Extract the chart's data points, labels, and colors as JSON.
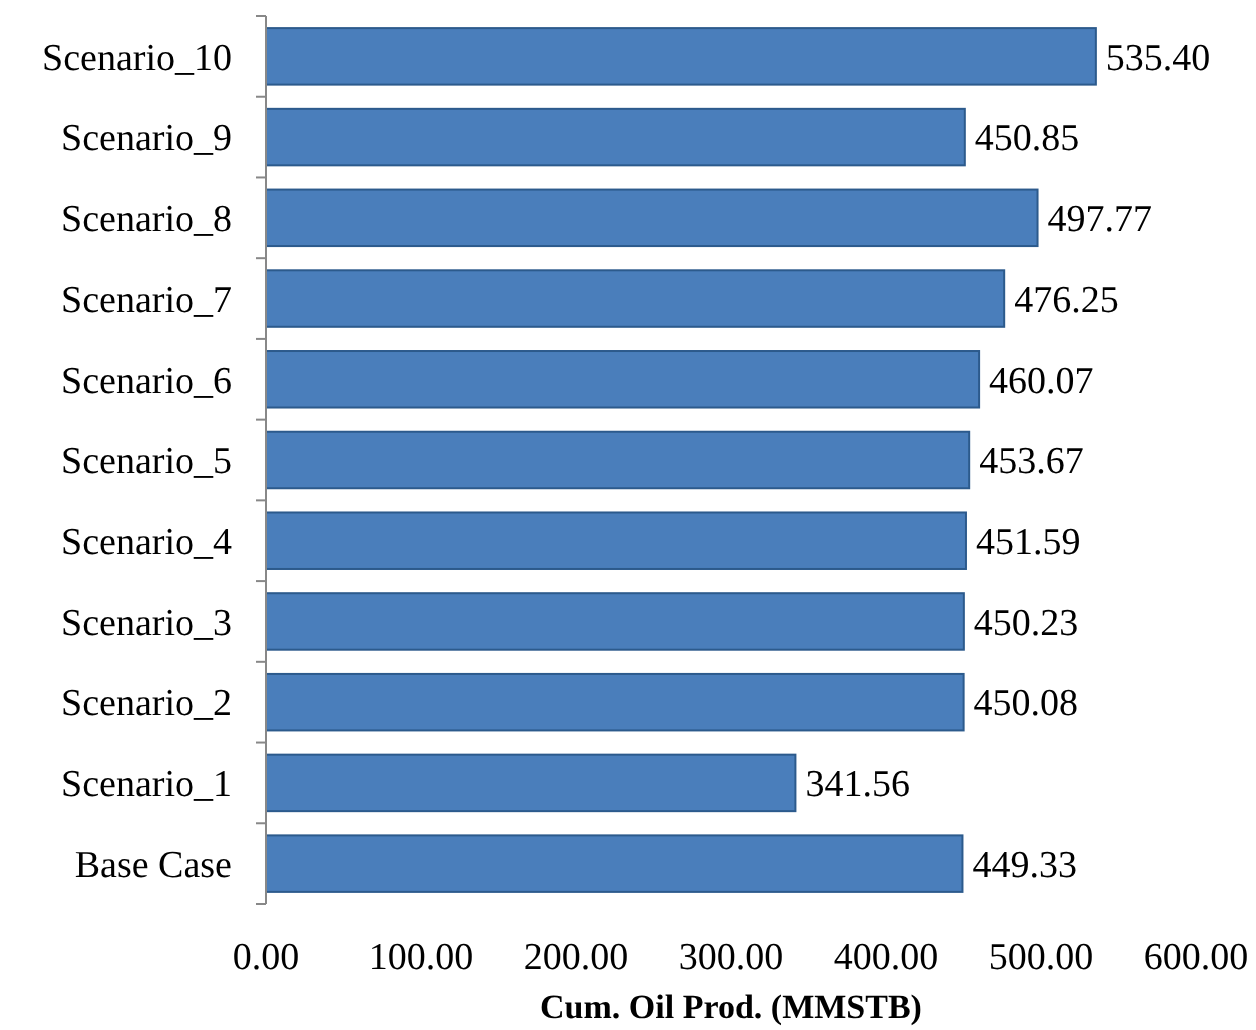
{
  "chart_data": {
    "type": "bar",
    "orientation": "horizontal",
    "xlabel": "Cum. Oil Prod. (MMSTB)",
    "categories": [
      "Scenario_10",
      "Scenario_9",
      "Scenario_8",
      "Scenario_7",
      "Scenario_6",
      "Scenario_5",
      "Scenario_4",
      "Scenario_3",
      "Scenario_2",
      "Scenario_1",
      "Base Case"
    ],
    "values": [
      535.4,
      450.85,
      497.77,
      476.25,
      460.07,
      453.67,
      451.59,
      450.23,
      450.08,
      341.56,
      449.33
    ],
    "value_labels": [
      "535.40",
      "450.85",
      "497.77",
      "476.25",
      "460.07",
      "453.67",
      "451.59",
      "450.23",
      "450.08",
      "341.56",
      "449.33"
    ],
    "color": "#4a7ebb",
    "xlim": [
      0,
      600
    ],
    "xticks": [
      {
        "value": 0,
        "label": "0.00"
      },
      {
        "value": 100,
        "label": "100.00"
      },
      {
        "value": 200,
        "label": "200.00"
      },
      {
        "value": 300,
        "label": "300.00"
      },
      {
        "value": 400,
        "label": "400.00"
      },
      {
        "value": 500,
        "label": "500.00"
      },
      {
        "value": 600,
        "label": "600.00"
      }
    ],
    "grid": false
  }
}
